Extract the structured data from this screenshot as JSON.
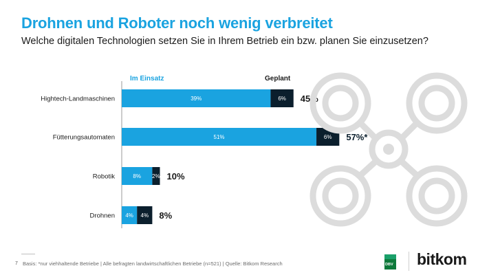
{
  "header": {
    "title": "Drohnen und Roboter noch wenig verbreitet",
    "subtitle": "Welche digitalen Technologien setzen Sie in Ihrem Betrieb ein bzw. planen Sie einzusetzen?"
  },
  "colors": {
    "title": "#1aa3e0",
    "in_use": "#1aa3e0",
    "planned": "#0b1f2d",
    "drone_graphic": "#d9d9d9"
  },
  "chart_data": {
    "type": "bar",
    "orientation": "horizontal",
    "stacked": true,
    "title": "Drohnen und Roboter noch wenig verbreitet",
    "xlabel": "",
    "ylabel": "",
    "xlim": [
      0,
      60
    ],
    "categories": [
      "Hightech-Landmaschinen",
      "Fütterungsautomaten",
      "Robotik",
      "Drohnen"
    ],
    "series": [
      {
        "name": "Im Einsatz",
        "values": [
          39,
          51,
          8,
          4
        ],
        "labels": [
          "39%",
          "51%",
          "8%",
          "4%"
        ]
      },
      {
        "name": "Geplant",
        "values": [
          6,
          6,
          2,
          4
        ],
        "labels": [
          "6%",
          "6%",
          "2%",
          "4%"
        ]
      }
    ],
    "totals": [
      "45%",
      "57%*",
      "10%",
      "8%"
    ]
  },
  "footer": {
    "page_number": "7",
    "footnote": "Basis: *nur viehhaltende Betriebe | Alle befragten landwirtschaftlichen Betriebe (n=521) | Quelle: Bitkom Research",
    "logo_dbv": "DBV",
    "logo_bitkom": "bitkom"
  }
}
